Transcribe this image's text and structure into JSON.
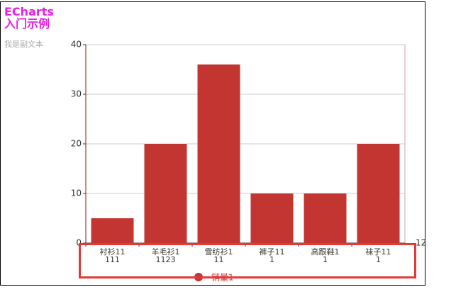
{
  "chart_data": {
    "type": "bar",
    "title": "ECharts\n入门示例",
    "subtitle": "我是副文本",
    "categories": [
      "衬衫11\n111",
      "羊毛衫1\n1123",
      "雪纺衫1\n11",
      "裤子11\n1",
      "高跟鞋1\n1",
      "袜子11\n1"
    ],
    "x_axis_label": "12",
    "series": [
      {
        "name": "销量1",
        "color": "#c23531",
        "values": [
          5,
          20,
          36,
          10,
          10,
          20
        ]
      }
    ],
    "ylim": [
      0,
      40
    ],
    "yticks": [
      0,
      10,
      20,
      30,
      40
    ],
    "grid": true
  }
}
